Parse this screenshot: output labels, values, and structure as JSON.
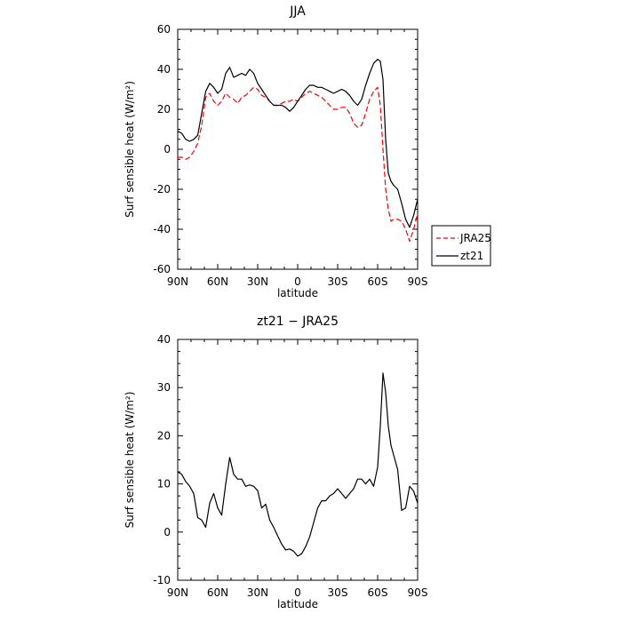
{
  "chart_data": [
    {
      "type": "line",
      "title": "JJA",
      "xlabel": "latitude",
      "ylabel": "Surf sensible heat (W/m²)",
      "xlim": [
        90,
        -90
      ],
      "ylim": [
        -60,
        60
      ],
      "x_ticks": [
        90,
        60,
        30,
        0,
        -30,
        -60,
        -90
      ],
      "x_tick_labels": [
        "90N",
        "60N",
        "30N",
        "0",
        "30S",
        "60S",
        "90S"
      ],
      "y_ticks": [
        -60,
        -40,
        -20,
        0,
        20,
        40,
        60
      ],
      "legend": "outside-right",
      "series": [
        {
          "name": "JRA25",
          "color": "#ff0000",
          "dash": "dashed",
          "x": [
            90,
            87,
            84,
            81,
            78,
            75,
            72,
            69,
            66,
            63,
            60,
            57,
            54,
            51,
            48,
            45,
            42,
            39,
            36,
            33,
            30,
            27,
            24,
            21,
            18,
            15,
            12,
            9,
            6,
            3,
            0,
            -3,
            -6,
            -9,
            -12,
            -15,
            -18,
            -21,
            -24,
            -27,
            -30,
            -33,
            -36,
            -39,
            -42,
            -45,
            -48,
            -51,
            -54,
            -57,
            -60,
            -62,
            -64,
            -66,
            -68,
            -70,
            -72,
            -75,
            -78,
            -81,
            -84,
            -87,
            -90
          ],
          "y": [
            -4,
            -4,
            -5,
            -4,
            -1,
            3,
            12,
            26,
            28,
            24,
            22,
            24,
            28,
            26,
            25,
            23,
            26,
            27,
            29,
            31,
            30,
            27,
            26,
            24,
            22,
            22,
            23,
            24,
            24,
            25,
            24,
            26,
            28,
            29,
            28,
            27,
            26,
            24,
            22,
            20,
            20,
            21,
            21,
            18,
            13,
            11,
            12,
            18,
            25,
            29,
            31,
            22,
            0,
            -20,
            -30,
            -36,
            -35,
            -35,
            -36,
            -40,
            -46,
            -40,
            -32
          ]
        },
        {
          "name": "zt21",
          "color": "#000000",
          "dash": "solid",
          "x": [
            90,
            87,
            84,
            81,
            78,
            75,
            72,
            69,
            66,
            63,
            60,
            57,
            54,
            51,
            48,
            45,
            42,
            39,
            36,
            33,
            30,
            27,
            24,
            21,
            18,
            15,
            12,
            9,
            6,
            3,
            0,
            -3,
            -6,
            -9,
            -12,
            -15,
            -18,
            -21,
            -24,
            -27,
            -30,
            -33,
            -36,
            -39,
            -42,
            -45,
            -48,
            -51,
            -54,
            -57,
            -60,
            -62,
            -64,
            -66,
            -68,
            -70,
            -72,
            -75,
            -78,
            -81,
            -84,
            -87,
            -90
          ],
          "y": [
            9,
            8,
            5,
            4,
            5,
            7,
            18,
            29,
            33,
            31,
            28,
            30,
            38,
            41,
            36,
            37,
            38,
            37,
            40,
            38,
            33,
            30,
            27,
            24,
            22,
            22,
            22,
            21,
            19,
            21,
            24,
            27,
            30,
            32,
            32,
            31,
            31,
            30,
            29,
            28,
            29,
            30,
            29,
            27,
            24,
            22,
            25,
            32,
            38,
            43,
            45,
            44,
            35,
            5,
            -12,
            -16,
            -18,
            -20,
            -27,
            -35,
            -39,
            -33,
            -25
          ]
        }
      ]
    },
    {
      "type": "line",
      "title": "zt21 − JRA25",
      "xlabel": "latitude",
      "ylabel": "Surf sensible heat (W/m²)",
      "xlim": [
        90,
        -90
      ],
      "ylim": [
        -10,
        40
      ],
      "x_ticks": [
        90,
        60,
        30,
        0,
        -30,
        -60,
        -90
      ],
      "x_tick_labels": [
        "90N",
        "60N",
        "30N",
        "0",
        "30S",
        "60S",
        "90S"
      ],
      "y_ticks": [
        -10,
        0,
        10,
        20,
        30,
        40
      ],
      "series": [
        {
          "color": "#000000",
          "dash": "solid",
          "x": [
            90,
            87,
            84,
            81,
            78,
            75,
            72,
            69,
            66,
            63,
            60,
            57,
            54,
            51,
            48,
            45,
            42,
            39,
            36,
            33,
            30,
            27,
            24,
            21,
            18,
            15,
            12,
            9,
            6,
            3,
            0,
            -3,
            -6,
            -9,
            -12,
            -15,
            -18,
            -21,
            -24,
            -27,
            -30,
            -33,
            -36,
            -39,
            -42,
            -45,
            -48,
            -51,
            -54,
            -57,
            -60,
            -62,
            -64,
            -66,
            -68,
            -70,
            -72,
            -75,
            -78,
            -81,
            -84,
            -87,
            -90
          ],
          "y": [
            12.5,
            12,
            10.5,
            9.5,
            8,
            3,
            2.5,
            1,
            6,
            8,
            5,
            3.5,
            10,
            15.5,
            12,
            11,
            11,
            9.5,
            9.8,
            9.5,
            8.6,
            5,
            5.8,
            2.5,
            1,
            -0.8,
            -2.5,
            -3.7,
            -3.5,
            -4,
            -5,
            -4.5,
            -3,
            -1,
            2,
            5,
            6.5,
            6.5,
            7.5,
            8,
            9,
            8,
            7,
            8,
            9,
            11,
            11,
            10,
            11,
            9.5,
            13.5,
            22,
            33,
            29,
            22,
            18,
            16,
            13,
            4.5,
            5,
            9.5,
            8.5,
            6
          ]
        }
      ]
    }
  ]
}
